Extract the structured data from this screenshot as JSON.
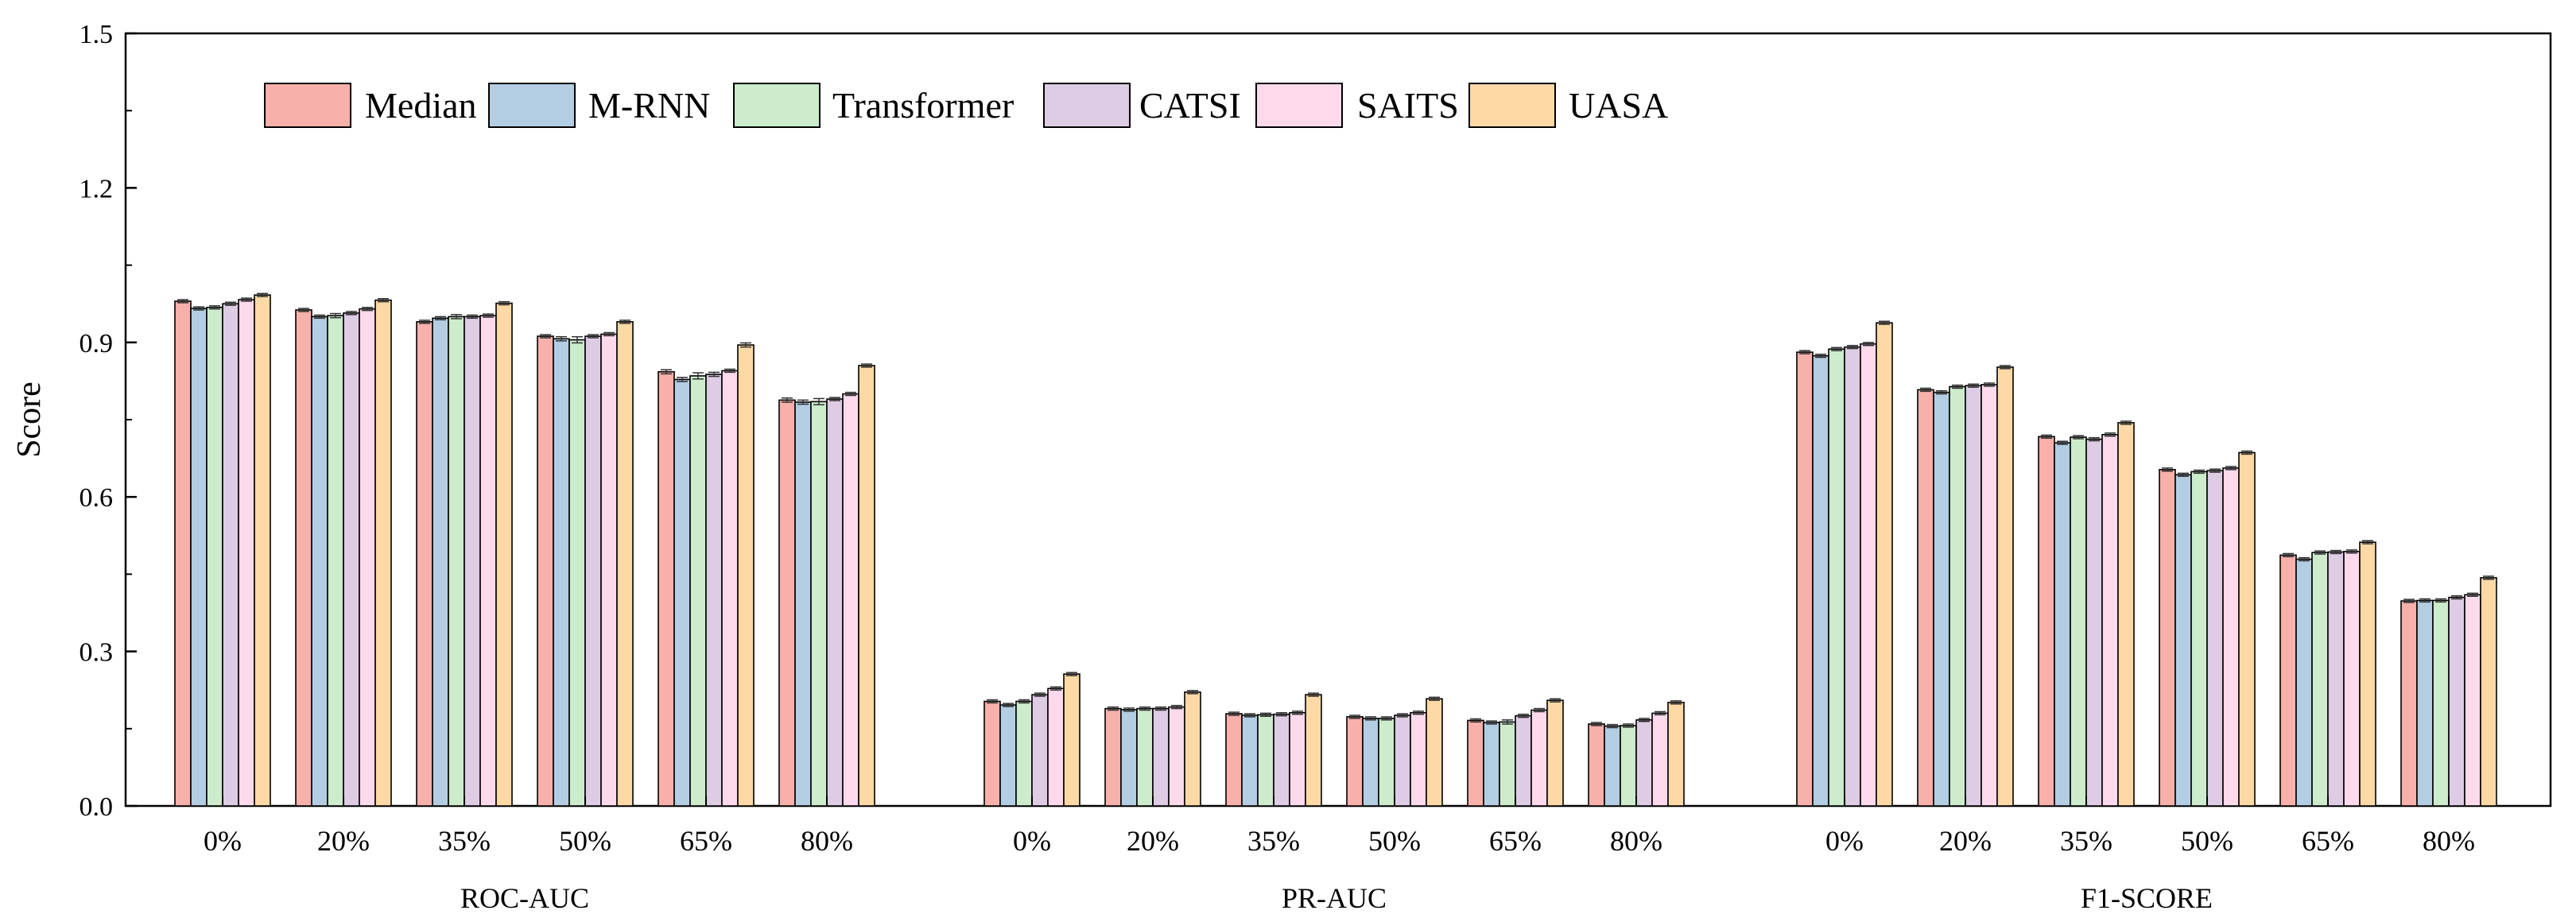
{
  "chart_data": {
    "type": "bar",
    "title": "",
    "xlabel": "",
    "ylabel": "Score",
    "ylim": [
      0.0,
      1.5
    ],
    "yticks": [
      "0.0",
      "0.3",
      "0.6",
      "0.9",
      "1.2",
      "1.5"
    ],
    "yticks_values": [
      0.0,
      0.3,
      0.6,
      0.9,
      1.2,
      1.5
    ],
    "grid": false,
    "legend_position": "top-left",
    "error_bars": true,
    "colors": {
      "Median": "#f8b0aa",
      "M-RNN": "#b3cde3",
      "Transformer": "#cceccb",
      "CATSI": "#decbe4",
      "SAITS": "#fdd9ec",
      "UASA": "#fed9a6"
    },
    "series_names": [
      "Median",
      "M-RNN",
      "Transformer",
      "CATSI",
      "SAITS",
      "UASA"
    ],
    "groups": [
      {
        "name": "ROC-AUC",
        "categories": [
          "0%",
          "20%",
          "35%",
          "50%",
          "65%",
          "80%"
        ],
        "series": [
          {
            "name": "Median",
            "values": [
              0.98,
              0.963,
              0.94,
              0.912,
              0.843,
              0.788
            ]
          },
          {
            "name": "M-RNN",
            "values": [
              0.966,
              0.95,
              0.947,
              0.907,
              0.828,
              0.784
            ]
          },
          {
            "name": "Transformer",
            "values": [
              0.968,
              0.952,
              0.95,
              0.905,
              0.835,
              0.785
            ]
          },
          {
            "name": "CATSI",
            "values": [
              0.975,
              0.957,
              0.95,
              0.912,
              0.838,
              0.79
            ]
          },
          {
            "name": "SAITS",
            "values": [
              0.983,
              0.965,
              0.952,
              0.916,
              0.845,
              0.8
            ]
          },
          {
            "name": "UASA",
            "values": [
              0.992,
              0.982,
              0.976,
              0.94,
              0.895,
              0.855
            ]
          }
        ],
        "errors": [
          [
            0.003,
            0.003,
            0.003,
            0.003,
            0.004,
            0.004
          ],
          [
            0.003,
            0.003,
            0.003,
            0.004,
            0.004,
            0.004
          ],
          [
            0.003,
            0.004,
            0.004,
            0.006,
            0.006,
            0.006
          ],
          [
            0.003,
            0.003,
            0.003,
            0.003,
            0.004,
            0.003
          ],
          [
            0.003,
            0.003,
            0.003,
            0.003,
            0.003,
            0.003
          ],
          [
            0.003,
            0.003,
            0.003,
            0.003,
            0.004,
            0.003
          ]
        ]
      },
      {
        "name": "PR-AUC",
        "categories": [
          "0%",
          "20%",
          "35%",
          "50%",
          "65%",
          "80%"
        ],
        "series": [
          {
            "name": "Median",
            "values": [
              0.203,
              0.189,
              0.179,
              0.173,
              0.166,
              0.159
            ]
          },
          {
            "name": "M-RNN",
            "values": [
              0.196,
              0.187,
              0.176,
              0.17,
              0.162,
              0.155
            ]
          },
          {
            "name": "Transformer",
            "values": [
              0.203,
              0.189,
              0.177,
              0.17,
              0.163,
              0.156
            ]
          },
          {
            "name": "CATSI",
            "values": [
              0.216,
              0.189,
              0.178,
              0.176,
              0.175,
              0.167
            ]
          },
          {
            "name": "SAITS",
            "values": [
              0.228,
              0.192,
              0.181,
              0.181,
              0.186,
              0.18
            ]
          },
          {
            "name": "UASA",
            "values": [
              0.256,
              0.221,
              0.216,
              0.208,
              0.205,
              0.201
            ]
          }
        ],
        "errors": [
          [
            0.003,
            0.003,
            0.003,
            0.003,
            0.003,
            0.003
          ],
          [
            0.003,
            0.003,
            0.003,
            0.003,
            0.003,
            0.003
          ],
          [
            0.003,
            0.003,
            0.003,
            0.003,
            0.004,
            0.003
          ],
          [
            0.003,
            0.003,
            0.003,
            0.003,
            0.003,
            0.003
          ],
          [
            0.003,
            0.003,
            0.003,
            0.003,
            0.003,
            0.003
          ],
          [
            0.003,
            0.003,
            0.003,
            0.003,
            0.003,
            0.003
          ]
        ]
      },
      {
        "name": "F1-SCORE",
        "categories": [
          "0%",
          "20%",
          "35%",
          "50%",
          "65%",
          "80%"
        ],
        "series": [
          {
            "name": "Median",
            "values": [
              0.881,
              0.808,
              0.717,
              0.653,
              0.487,
              0.398
            ]
          },
          {
            "name": "M-RNN",
            "values": [
              0.874,
              0.803,
              0.705,
              0.643,
              0.479,
              0.399
            ]
          },
          {
            "name": "Transformer",
            "values": [
              0.887,
              0.814,
              0.716,
              0.649,
              0.492,
              0.399
            ]
          },
          {
            "name": "CATSI",
            "values": [
              0.891,
              0.816,
              0.712,
              0.651,
              0.493,
              0.405
            ]
          },
          {
            "name": "SAITS",
            "values": [
              0.897,
              0.818,
              0.721,
              0.656,
              0.494,
              0.41
            ]
          },
          {
            "name": "UASA",
            "values": [
              0.938,
              0.852,
              0.744,
              0.686,
              0.512,
              0.443
            ]
          }
        ],
        "errors": [
          [
            0.003,
            0.003,
            0.003,
            0.003,
            0.003,
            0.003
          ],
          [
            0.003,
            0.003,
            0.003,
            0.003,
            0.003,
            0.003
          ],
          [
            0.003,
            0.003,
            0.003,
            0.003,
            0.003,
            0.003
          ],
          [
            0.003,
            0.003,
            0.003,
            0.003,
            0.003,
            0.003
          ],
          [
            0.003,
            0.003,
            0.003,
            0.003,
            0.003,
            0.003
          ],
          [
            0.003,
            0.003,
            0.003,
            0.003,
            0.003,
            0.003
          ]
        ]
      }
    ]
  }
}
